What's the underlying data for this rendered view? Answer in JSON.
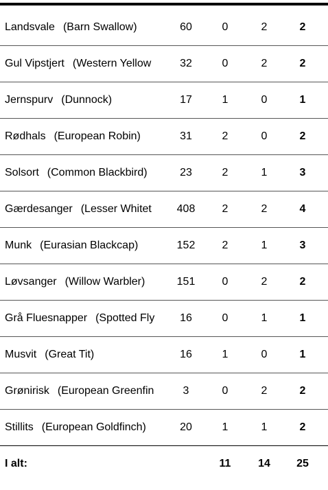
{
  "table": {
    "rows": [
      [
        "Landsvale",
        "(Barn Swallow)",
        60,
        0,
        2,
        2
      ],
      [
        "Gul Vipstjert",
        "(Western Yellow",
        32,
        0,
        2,
        2
      ],
      [
        "Jernspurv",
        "(Dunnock)",
        17,
        1,
        0,
        1
      ],
      [
        "Rødhals",
        "(European Robin)",
        31,
        2,
        0,
        2
      ],
      [
        "Solsort",
        "(Common Blackbird)",
        23,
        2,
        1,
        3
      ],
      [
        "Gærdesanger",
        "(Lesser Whitet",
        408,
        2,
        2,
        4
      ],
      [
        "Munk",
        "(Eurasian Blackcap)",
        152,
        2,
        1,
        3
      ],
      [
        "Løvsanger",
        "(Willow Warbler)",
        151,
        0,
        2,
        2
      ],
      [
        "Grå Fluesnapper",
        "(Spotted Fly",
        16,
        0,
        1,
        1
      ],
      [
        "Musvit",
        "(Great Tit)",
        16,
        1,
        0,
        1
      ],
      [
        "Grønirisk",
        "(European Greenfin",
        3,
        0,
        2,
        2
      ],
      [
        "Stillits",
        "(European Goldfinch)",
        20,
        1,
        1,
        2
      ]
    ],
    "total": {
      "label": "I alt:",
      "values": [
        11,
        14,
        25
      ]
    }
  }
}
